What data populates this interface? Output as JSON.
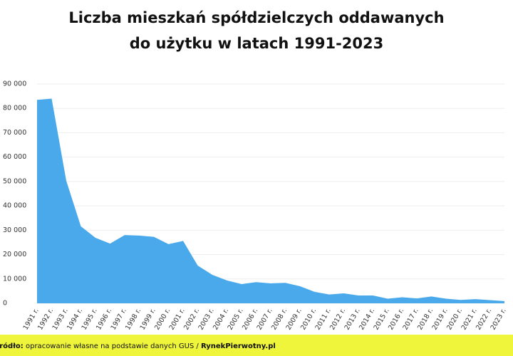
{
  "chart_data": {
    "type": "area",
    "title": "Liczba mieszkań spółdzielczych oddawanych",
    "subtitle": "do użytku w latach 1991-2023",
    "categories": [
      "1991 r.",
      "1992 r.",
      "1993 r.",
      "1994 r.",
      "1995 r.",
      "1996 r.",
      "1997 r.",
      "1998 r.",
      "1999 r.",
      "2000 r.",
      "2001 r.",
      "2002 r.",
      "2003 r.",
      "2004 r.",
      "2005 r.",
      "2006 r.",
      "2007 r.",
      "2008 r.",
      "2009 r.",
      "2010 r.",
      "2011 r.",
      "2012 r.",
      "2013 r.",
      "2014 r.",
      "2015 r.",
      "2016 r.",
      "2017 r.",
      "2018 r.",
      "2019 r.",
      "2020 r.",
      "2021 r.",
      "2022 r.",
      "2023 r."
    ],
    "values": [
      83500,
      84000,
      50300,
      31600,
      26900,
      24500,
      28000,
      27800,
      27300,
      24300,
      25600,
      15500,
      11700,
      9400,
      7900,
      8700,
      8200,
      8400,
      7000,
      4700,
      3600,
      4100,
      3200,
      3200,
      1900,
      2500,
      2000,
      2800,
      1900,
      1400,
      1700,
      1300,
      900
    ],
    "color": "#4aa9ea",
    "ylim": [
      0,
      90000
    ],
    "yticks": [
      0,
      {
        "value": 10000,
        "label": "10 000"
      },
      {
        "value": 20000,
        "label": "20 000"
      },
      {
        "value": 30000,
        "label": "30 000"
      },
      {
        "value": 40000,
        "label": "40 000"
      },
      {
        "value": 50000,
        "label": "50 000"
      },
      {
        "value": 60000,
        "label": "60 000"
      },
      {
        "value": 70000,
        "label": "70 000"
      },
      {
        "value": 80000,
        "label": "80 000"
      },
      {
        "value": 90000,
        "label": "90 000"
      }
    ],
    "grid": true,
    "source_label": "Źródło:",
    "source_text": "opracowanie własne na podstawie danych GUS /",
    "source_brand": "RynekPierwotny.pl"
  }
}
